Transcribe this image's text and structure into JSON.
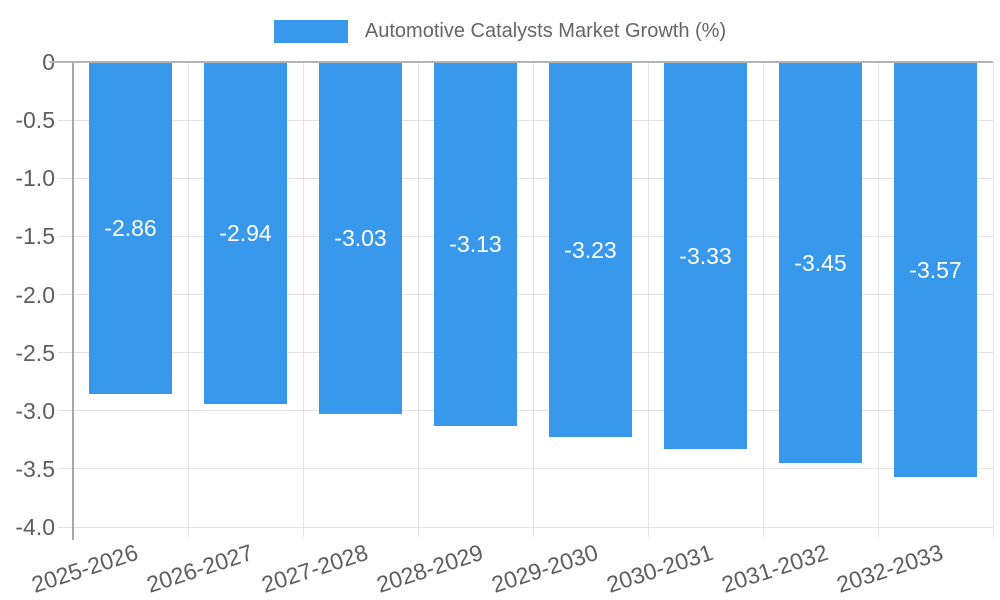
{
  "chart_data": {
    "type": "bar",
    "title": "Automotive Catalysts Market Growth (%)",
    "categories": [
      "2025-2026",
      "2026-2027",
      "2027-2028",
      "2028-2029",
      "2029-2030",
      "2030-2031",
      "2031-2032",
      "2032-2033"
    ],
    "values": [
      -2.86,
      -2.94,
      -3.03,
      -3.13,
      -3.23,
      -3.33,
      -3.45,
      -3.57
    ],
    "bar_labels": [
      "-2.86",
      "-2.94",
      "-3.03",
      "-3.13",
      "-3.23",
      "-3.33",
      "-3.45",
      "-3.57"
    ],
    "xlabel": "",
    "ylabel": "",
    "ylim": [
      -4.0,
      0
    ],
    "yticks": [
      0,
      -0.5,
      -1.0,
      -1.5,
      -2.0,
      -2.5,
      -3.0,
      -3.5,
      -4.0
    ],
    "ytick_labels": [
      "0",
      "-0.5",
      "-1.0",
      "-1.5",
      "-2.0",
      "-2.5",
      "-3.0",
      "-3.5",
      "-4.0"
    ],
    "grid": true,
    "legend_position": "top-center",
    "colors": {
      "bar": "#3899EC",
      "grid": "#e3e3e3",
      "zero_line": "#b4b4b4",
      "axis": "#a8a8a8",
      "tick_text": "#5e5e5e",
      "legend_text": "#666666",
      "bar_label_text": "#ffffff",
      "background": "#ffffff"
    }
  }
}
